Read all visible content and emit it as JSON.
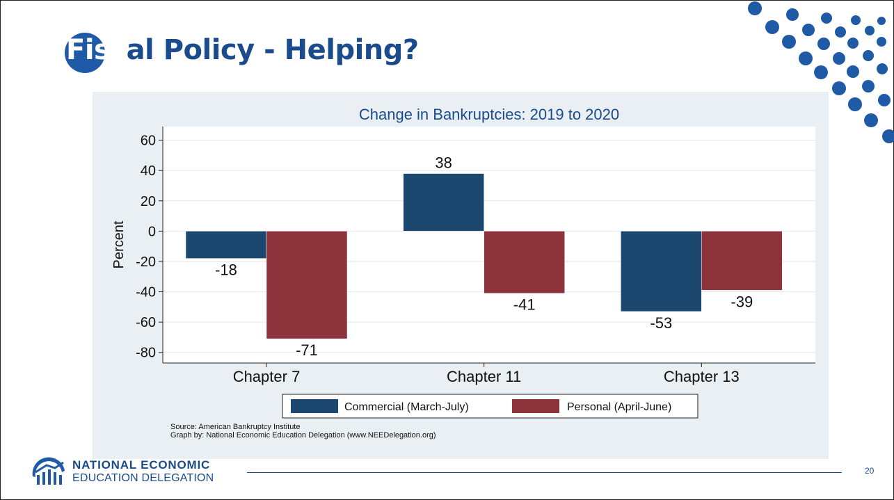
{
  "slide": {
    "title_highlight": "Fisc",
    "title_rest": "al Policy - Helping?",
    "page_number": "20",
    "source_line1": "Source: American Bankruptcy Institute",
    "source_line2": "Graph by: National Economic Education Delegation (www.NEEDelegation.org)",
    "logo_line1": "NATIONAL ECONOMIC",
    "logo_line2": "EDUCATION DELEGATION",
    "colors": {
      "accent": "#1a4b8c",
      "panel": "#e9eff2"
    }
  },
  "chart_data": {
    "type": "bar",
    "title": "Change in Bankruptcies: 2019 to 2020",
    "xlabel": "",
    "ylabel": "Percent",
    "categories": [
      "Chapter 7",
      "Chapter 11",
      "Chapter 13"
    ],
    "series": [
      {
        "name": "Commercial (March-July)",
        "color": "#1c4870",
        "values": [
          -18,
          38,
          -53
        ]
      },
      {
        "name": "Personal (April-June)",
        "color": "#8c333b",
        "values": [
          -71,
          -41,
          -39
        ]
      }
    ],
    "ylim": [
      -87,
      69
    ],
    "yticks": [
      60,
      40,
      20,
      0,
      -20,
      -40,
      -60,
      -80
    ],
    "grid": true,
    "legend": "bottom"
  }
}
